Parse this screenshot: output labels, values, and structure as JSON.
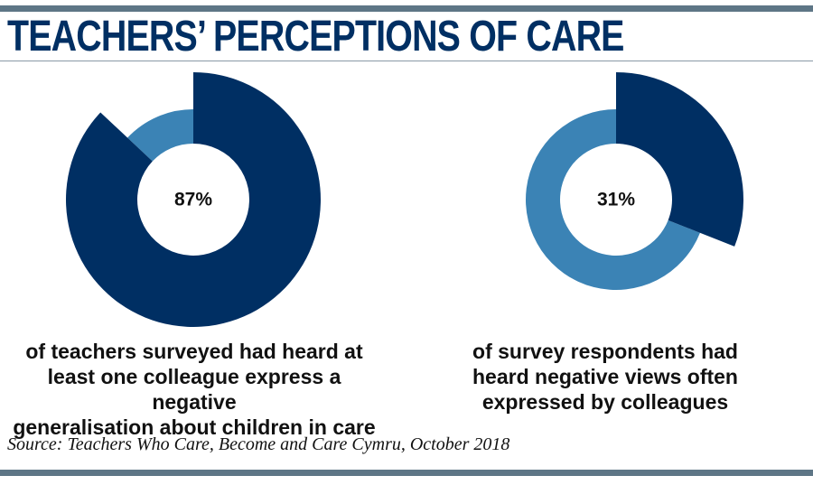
{
  "header": {
    "title": "TEACHERS’ PERCEPTIONS OF CARE"
  },
  "chart_data": [
    {
      "type": "pie",
      "variant": "donut",
      "value_percent": 87,
      "center_label": "87%",
      "caption": "of teachers surveyed had heard at least one colleague express a negative generalisation about children in care",
      "caption_lines": [
        "of teachers surveyed had heard at",
        "least one colleague express a negative",
        "generalisation about children in care"
      ],
      "colors": {
        "highlight": "#002f63",
        "remainder": "#3b83b5"
      }
    },
    {
      "type": "pie",
      "variant": "donut",
      "value_percent": 31,
      "center_label": "31%",
      "caption": "of survey respondents had heard negative views often expressed by colleagues",
      "caption_lines": [
        "of survey respondents had",
        "heard negative views often",
        "expressed by colleagues"
      ],
      "colors": {
        "highlight": "#002f63",
        "remainder": "#3b83b5"
      }
    }
  ],
  "footer": {
    "source": "Source: Teachers Who Care, Become and Care Cymru, October 2018"
  }
}
